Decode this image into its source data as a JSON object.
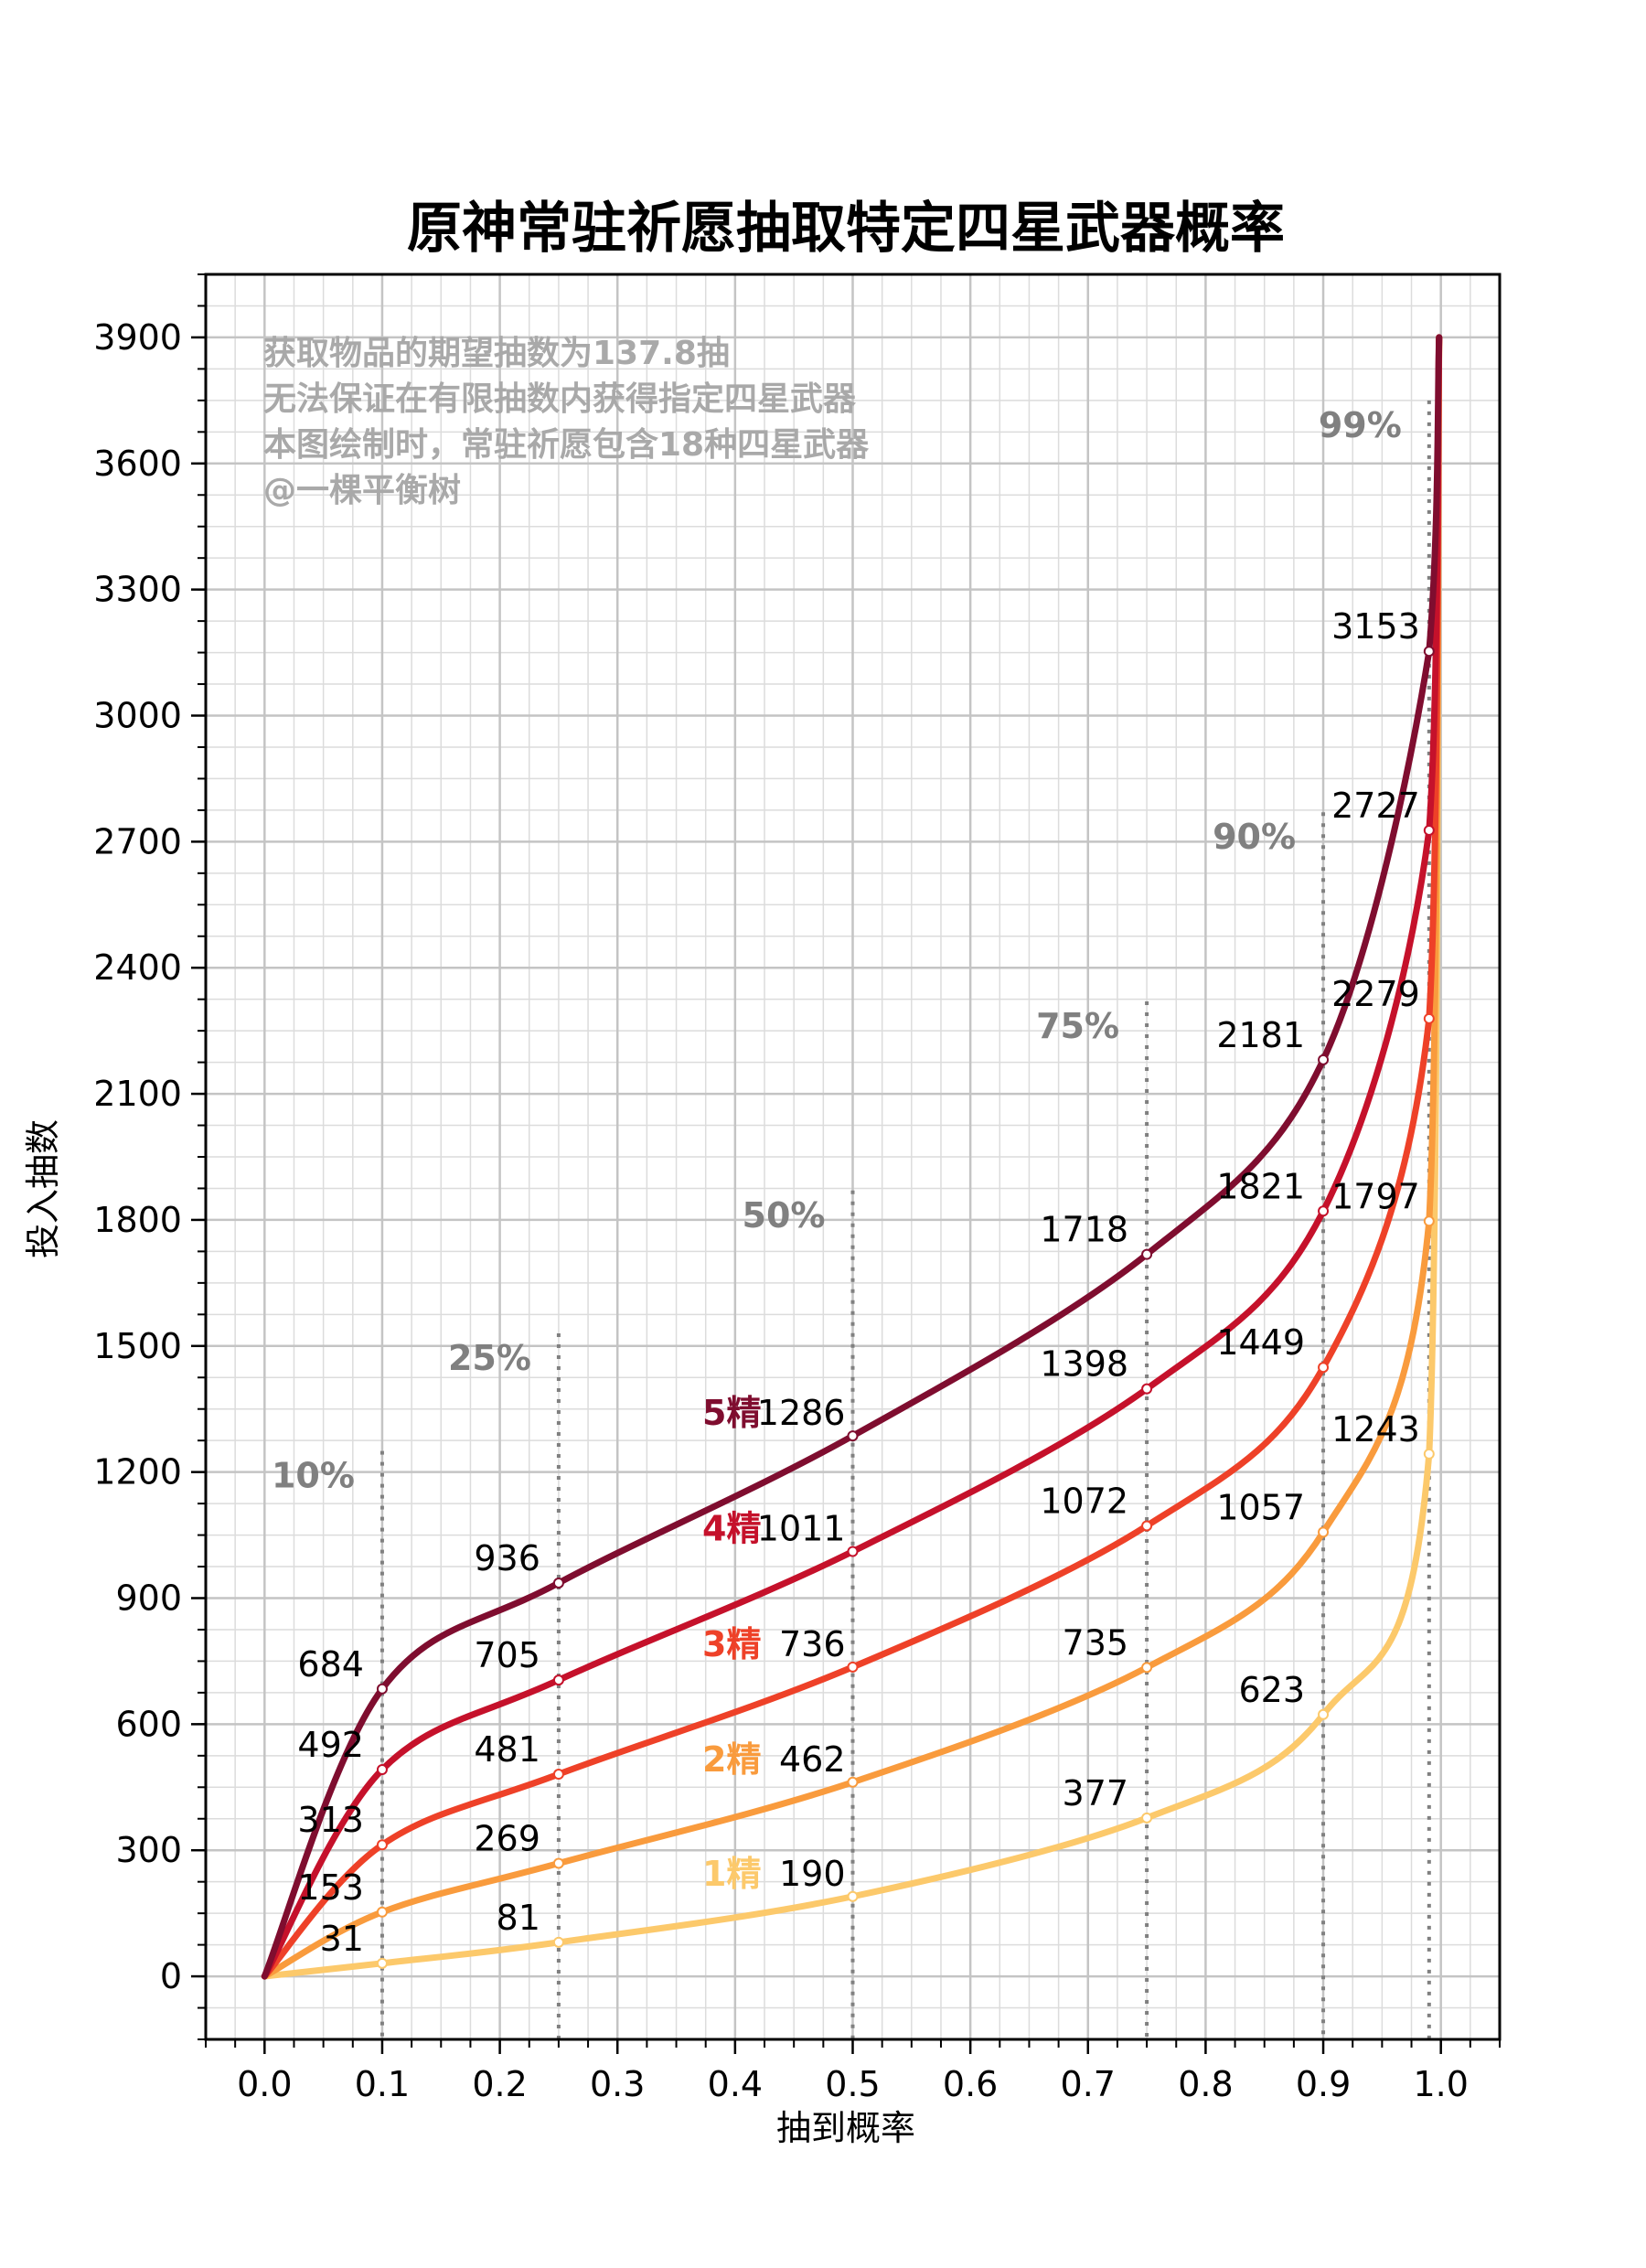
{
  "chart_data": {
    "type": "line",
    "title": "原神常驻祈愿抽取特定四星武器概率",
    "xlabel": "抽到概率",
    "ylabel": "投入抽数",
    "xlim": [
      -0.05,
      1.05
    ],
    "ylim": [
      -150,
      4050
    ],
    "x_ticks": [
      "0.0",
      "0.1",
      "0.2",
      "0.3",
      "0.4",
      "0.5",
      "0.6",
      "0.7",
      "0.8",
      "0.9",
      "1.0"
    ],
    "y_ticks": [
      "0",
      "300",
      "600",
      "900",
      "1200",
      "1500",
      "1800",
      "2100",
      "2400",
      "2700",
      "3000",
      "3300",
      "3600",
      "3900"
    ],
    "grid": true,
    "notes": [
      "获取物品的期望抽数为137.8抽",
      "无法保证在有限抽数内获得指定四星武器",
      "本图绘制时，常驻祈愿包含18种四星武器",
      "@一棵平衡树"
    ],
    "percentile_lines": [
      {
        "x": 0.1,
        "label": "10%",
        "top": 1250
      },
      {
        "x": 0.25,
        "label": "25%",
        "top": 1530
      },
      {
        "x": 0.5,
        "label": "50%",
        "top": 1870
      },
      {
        "x": 0.75,
        "label": "75%",
        "top": 2320
      },
      {
        "x": 0.9,
        "label": "90%",
        "top": 2770
      },
      {
        "x": 0.99,
        "label": "99%",
        "top": 3750
      }
    ],
    "x": [
      0.1,
      0.25,
      0.5,
      0.75,
      0.9,
      0.99
    ],
    "series": [
      {
        "name": "5精",
        "color": "#7f0d2f",
        "values": [
          684,
          936,
          1286,
          1718,
          2181,
          3153
        ],
        "labels": [
          "684",
          "936",
          "1286",
          "1718",
          "2181",
          "3153"
        ]
      },
      {
        "name": "4精",
        "color": "#c5112b",
        "values": [
          492,
          705,
          1011,
          1398,
          1821,
          2727
        ],
        "labels": [
          "492",
          "705",
          "1011",
          "1398",
          "1821",
          "2727"
        ]
      },
      {
        "name": "3精",
        "color": "#ee4128",
        "values": [
          313,
          481,
          736,
          1072,
          1449,
          2279
        ],
        "labels": [
          "313",
          "481",
          "736",
          "1072",
          "1449",
          "2279"
        ]
      },
      {
        "name": "2精",
        "color": "#f99b3d",
        "values": [
          153,
          269,
          462,
          735,
          1057,
          1797
        ],
        "labels": [
          "153",
          "269",
          "462",
          "735",
          "1057",
          "1797"
        ]
      },
      {
        "name": "1精",
        "color": "#fcc96b",
        "values": [
          31,
          81,
          190,
          377,
          623,
          1243
        ],
        "labels": [
          "31",
          "81",
          "190",
          "377",
          "623",
          "1243"
        ]
      }
    ]
  }
}
